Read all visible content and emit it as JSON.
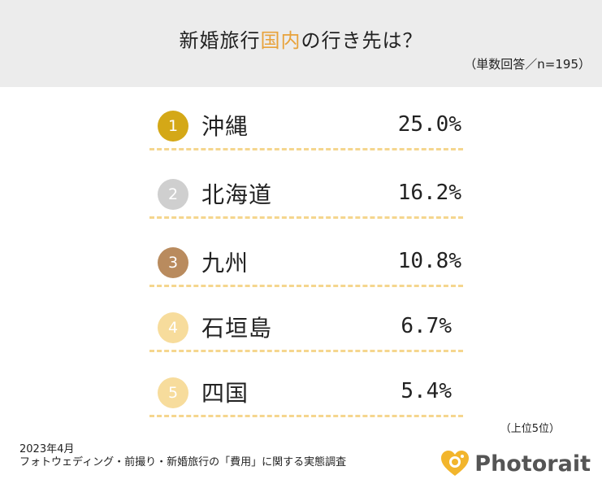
{
  "header": {
    "title_pre": "新婚旅行",
    "title_accent": "国内",
    "title_post": "の行き先は？",
    "subtitle": "（単数回答／n=195）"
  },
  "colors": {
    "accent": "#e8a23a",
    "header_bg": "#ececec",
    "rank1": "#d4a817",
    "rank2": "#cfcfcf",
    "rank3": "#b98b5e",
    "rank45": "#f7dc9c",
    "dash": "#f5d68e"
  },
  "ranking": [
    {
      "rank": "1",
      "place": "沖縄",
      "percent": "25.0%",
      "value": 25.0
    },
    {
      "rank": "2",
      "place": "北海道",
      "percent": "16.2%",
      "value": 16.2
    },
    {
      "rank": "3",
      "place": "九州",
      "percent": "10.8%",
      "value": 10.8
    },
    {
      "rank": "4",
      "place": "石垣島",
      "percent": "6.7%",
      "value": 6.7
    },
    {
      "rank": "5",
      "place": "四国",
      "percent": "5.4%",
      "value": 5.4
    }
  ],
  "note": "（上位5位）",
  "footer": {
    "date": "2023年4月",
    "survey": "フォトウェディング・前撮り・新婚旅行の「費用」に関する実態調査"
  },
  "logo": {
    "name": "Photorait",
    "icon": "heart-camera-icon"
  }
}
